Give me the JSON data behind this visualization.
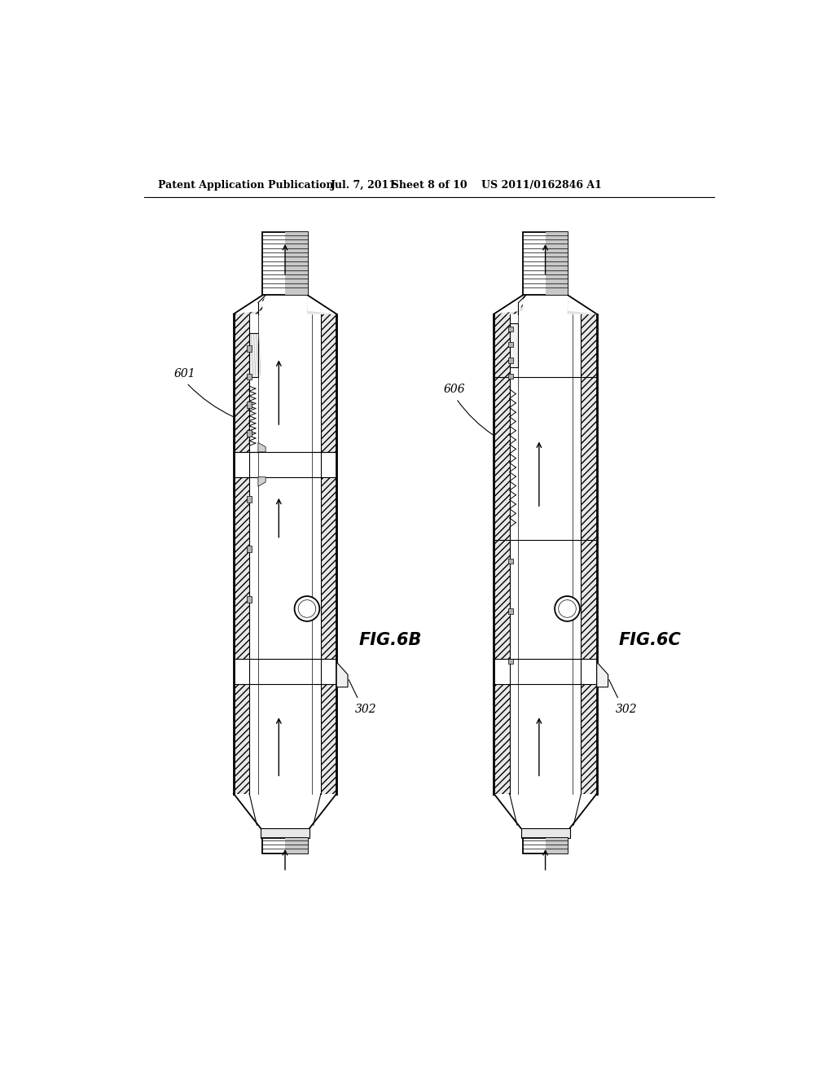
{
  "bg_color": "#ffffff",
  "header_text": "Patent Application Publication",
  "header_date": "Jul. 7, 2011",
  "header_sheet": "Sheet 8 of 10",
  "header_patent": "US 2011/0162846 A1",
  "line_color": "#000000",
  "fig6b_label": "FIG.6B",
  "fig6c_label": "FIG.6C",
  "ref_601": "601",
  "ref_302a": "302",
  "ref_606": "606",
  "ref_302b": "302"
}
